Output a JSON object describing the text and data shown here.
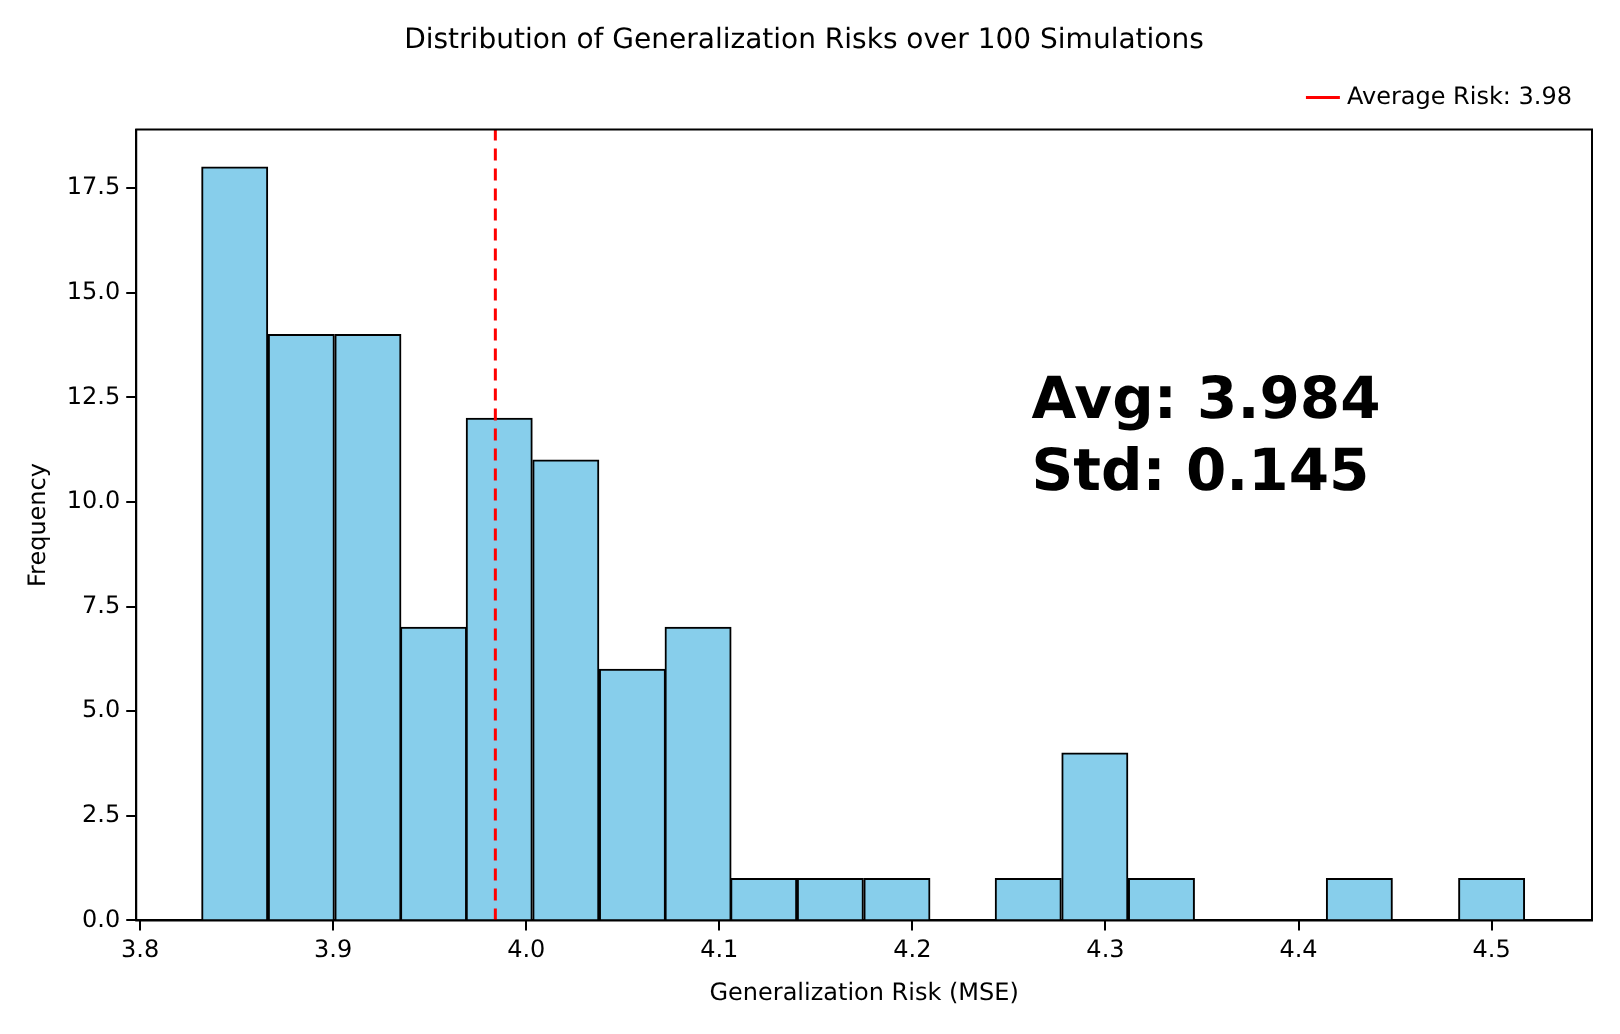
{
  "chart_data": {
    "type": "histogram",
    "title": "Distribution of Generalization Risks over 100 Simulations",
    "xlabel": "Generalization Risk (MSE)",
    "ylabel": "Frequency",
    "bins": [
      3.832,
      3.866,
      3.901,
      3.935,
      3.969,
      4.003,
      4.038,
      4.072,
      4.106,
      4.14,
      4.175,
      4.209,
      4.243,
      4.277,
      4.312,
      4.346,
      4.38,
      4.414,
      4.449,
      4.483,
      4.517
    ],
    "values": [
      18,
      14,
      14,
      7,
      12,
      11,
      6,
      7,
      1,
      1,
      1,
      0,
      1,
      4,
      1,
      0,
      0,
      1,
      0,
      1
    ],
    "color": "#87ceeb",
    "xlim": [
      3.798,
      4.552
    ],
    "ylim": [
      0,
      18.9
    ],
    "xticks": [
      3.8,
      3.9,
      {
        "value": 4.0,
        "label": "4.0"
      },
      4.1,
      4.2,
      4.3,
      4.4,
      4.5
    ],
    "yticks": [
      {
        "value": 0,
        "label": "0.0"
      },
      2.5,
      {
        "value": 5,
        "label": "5.0"
      },
      7.5,
      {
        "value": 10,
        "label": "10.0"
      },
      12.5,
      {
        "value": 15,
        "label": "15.0"
      },
      17.5
    ],
    "ref_lines": [
      {
        "axis": "x",
        "value": 3.984,
        "label": "Average Risk: 3.98",
        "color": "#ff0000",
        "line_style": "dashed"
      }
    ],
    "annotations": [
      "Avg: 3.984",
      "Std: 0.145"
    ],
    "legend": "top right",
    "grid": false
  }
}
